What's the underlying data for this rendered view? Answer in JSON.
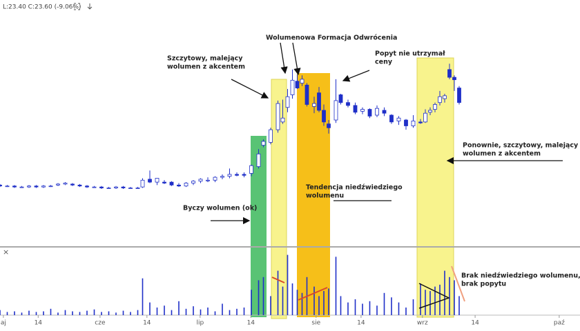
{
  "chart_data": {
    "type": "candlestick",
    "legend": "L:23.40  C:23.60  (-9.06%)",
    "xlim": [
      0,
      120
    ],
    "xticks": [
      {
        "value": 0.7,
        "label": "aj"
      },
      {
        "value": 7.9,
        "label": "14"
      },
      {
        "value": 20.7,
        "label": "cze"
      },
      {
        "value": 30.4,
        "label": "14"
      },
      {
        "value": 41.4,
        "label": "lip"
      },
      {
        "value": 51.9,
        "label": "14"
      },
      {
        "value": 65.4,
        "label": "sie"
      },
      {
        "value": 74.7,
        "label": "14"
      },
      {
        "value": 87.4,
        "label": "wrz"
      },
      {
        "value": 98.3,
        "label": "14"
      },
      {
        "value": 115.7,
        "label": "paź"
      }
    ],
    "ylim": [
      8.8,
      33.1
    ],
    "volume_ylim": [
      0,
      100
    ],
    "up_color": "#ffffff",
    "down_color": "#1f2fc8",
    "outline_color": "#1f2fc8",
    "volume_color": "#1f2fc8",
    "x": [
      0,
      1.5,
      3,
      4.5,
      6,
      7.5,
      9,
      10.5,
      12,
      13.5,
      15,
      16.5,
      18,
      19.5,
      21,
      22.5,
      24,
      25.5,
      27,
      28.5,
      29.5,
      31,
      32.5,
      34,
      35.5,
      37,
      38.5,
      40,
      41.5,
      43,
      44.5,
      46,
      47.5,
      49,
      50.5,
      52,
      53.5,
      54.5,
      56,
      57.5,
      58.5,
      59.5,
      60.5,
      61.5,
      62.5,
      63.5,
      65,
      66,
      67,
      68,
      69.5,
      70.5,
      72,
      73.5,
      75,
      76.5,
      78,
      79.5,
      81,
      82.5,
      84,
      85.5,
      87,
      88,
      89,
      90,
      91,
      92,
      93,
      94,
      95
    ],
    "open": [
      15.1,
      15.0,
      15.0,
      14.9,
      14.9,
      15.0,
      14.9,
      15.0,
      15.1,
      15.2,
      15.2,
      15.1,
      15.0,
      14.9,
      14.9,
      14.8,
      14.8,
      14.9,
      14.8,
      14.8,
      14.9,
      15.7,
      15.4,
      15.4,
      15.4,
      15.1,
      15.0,
      15.3,
      15.5,
      15.6,
      15.6,
      15.9,
      16.0,
      16.2,
      16.2,
      16.3,
      17.0,
      19.2,
      19.5,
      20.8,
      21.6,
      23.1,
      24.4,
      25.8,
      25.6,
      25.4,
      23.2,
      24.6,
      22.8,
      21.4,
      21.8,
      24.4,
      23.6,
      23.3,
      22.7,
      22.9,
      22.3,
      22.8,
      22.3,
      21.7,
      21.8,
      21.2,
      21.6,
      21.6,
      22.6,
      22.9,
      23.6,
      24.0,
      27.0,
      26.2,
      25.1
    ],
    "high": [
      15.2,
      15.1,
      15.1,
      15.0,
      15.1,
      15.1,
      15.1,
      15.1,
      15.3,
      15.4,
      15.3,
      15.2,
      15.1,
      15.0,
      15.0,
      14.9,
      15.0,
      15.0,
      14.9,
      14.9,
      15.8,
      16.6,
      15.8,
      15.6,
      15.5,
      15.3,
      15.4,
      15.6,
      15.8,
      15.9,
      16.0,
      16.2,
      16.8,
      16.4,
      16.4,
      17.2,
      18.8,
      19.8,
      21.0,
      23.8,
      23.9,
      25.0,
      27.0,
      26.5,
      26.4,
      25.6,
      24.2,
      25.2,
      23.4,
      21.8,
      26.0,
      24.5,
      23.9,
      23.6,
      23.1,
      23.0,
      23.3,
      23.1,
      22.4,
      22.2,
      21.9,
      22.3,
      21.9,
      22.9,
      23.1,
      23.6,
      24.8,
      24.5,
      27.6,
      26.4,
      25.3
    ],
    "low": [
      14.9,
      14.9,
      14.8,
      14.8,
      14.8,
      14.8,
      14.8,
      14.9,
      15.0,
      15.1,
      15.0,
      14.9,
      14.8,
      14.8,
      14.7,
      14.7,
      14.7,
      14.7,
      14.7,
      14.7,
      14.8,
      15.3,
      15.1,
      15.2,
      15.0,
      14.9,
      14.9,
      15.1,
      15.3,
      15.4,
      15.4,
      15.7,
      15.8,
      16.0,
      15.9,
      16.0,
      16.8,
      19.0,
      19.3,
      20.5,
      21.4,
      22.6,
      24.0,
      25.0,
      25.3,
      23.2,
      22.5,
      22.6,
      21.2,
      20.4,
      21.5,
      23.4,
      23.1,
      22.4,
      22.4,
      22.0,
      22.1,
      22.2,
      21.4,
      21.3,
      20.8,
      21.0,
      21.4,
      21.5,
      22.3,
      22.6,
      23.3,
      23.6,
      26.0,
      24.8,
      23.4
    ],
    "close": [
      15.0,
      15.0,
      14.9,
      14.9,
      15.0,
      14.9,
      15.0,
      15.0,
      15.2,
      15.3,
      15.1,
      15.0,
      14.9,
      14.9,
      14.8,
      14.8,
      14.9,
      14.8,
      14.8,
      14.8,
      15.6,
      15.4,
      15.8,
      15.3,
      15.1,
      15.0,
      15.3,
      15.5,
      15.7,
      15.6,
      15.9,
      16.0,
      16.2,
      16.1,
      16.1,
      17.1,
      18.3,
      19.6,
      20.8,
      23.5,
      22.0,
      24.2,
      25.9,
      25.1,
      26.0,
      23.4,
      23.5,
      22.8,
      21.6,
      21.0,
      23.8,
      23.6,
      23.3,
      22.6,
      22.9,
      22.2,
      23.0,
      22.5,
      21.6,
      22.0,
      21.2,
      21.7,
      21.5,
      22.5,
      22.8,
      23.4,
      24.2,
      24.3,
      26.2,
      25.95,
      23.6
    ],
    "volume": [
      8,
      5,
      6,
      4,
      7,
      5,
      6,
      10,
      4,
      8,
      6,
      5,
      7,
      9,
      5,
      6,
      4,
      7,
      5,
      8,
      58,
      20,
      12,
      15,
      8,
      22,
      10,
      14,
      9,
      12,
      6,
      18,
      8,
      10,
      12,
      40,
      55,
      60,
      30,
      70,
      45,
      95,
      50,
      40,
      35,
      60,
      45,
      30,
      38,
      42,
      92,
      30,
      20,
      25,
      18,
      22,
      15,
      35,
      28,
      20,
      12,
      25,
      50,
      40,
      38,
      45,
      48,
      70,
      60,
      55,
      30
    ],
    "annotations": [
      [
        "Wolumenowa Formacja Odwrócenia"
      ],
      [
        "Szczytowy, malejący",
        "wolumen z akcentem"
      ],
      [
        "Popyt nie utrzymał",
        "ceny"
      ],
      [
        "Ponownie, szczytowy, malejący",
        "wolumen z akcentem"
      ],
      [
        "Tendencja niedźwiedziego",
        "wolumenu"
      ],
      [
        "Byczy wolumen (ok)"
      ],
      [
        "Brak niedźwiedziego wolumenu,",
        "brak popytu"
      ]
    ]
  }
}
